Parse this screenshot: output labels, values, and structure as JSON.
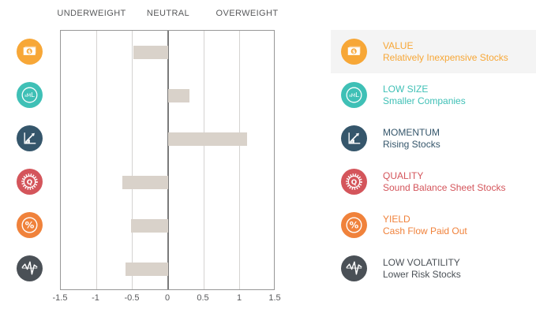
{
  "header": {
    "zone_labels": [
      "UNDERWEIGHT",
      "NEUTRAL",
      "OVERWEIGHT"
    ]
  },
  "x_axis": {
    "tick_labels": [
      "-1.5",
      "-1",
      "-0.5",
      "0",
      "0.5",
      "1",
      "1.5"
    ]
  },
  "chart_data": {
    "type": "bar",
    "orientation": "horizontal",
    "title": "",
    "categories": [
      "VALUE",
      "LOW SIZE",
      "MOMENTUM",
      "QUALITY",
      "YIELD",
      "LOW VOLATILITY"
    ],
    "values": [
      -0.49,
      0.3,
      1.1,
      -0.64,
      -0.52,
      -0.6
    ],
    "xlim": [
      -1.5,
      1.5
    ],
    "x_ticks": [
      -1.5,
      -1,
      -0.5,
      0,
      0.5,
      1,
      1.5
    ],
    "zones": [
      "UNDERWEIGHT",
      "NEUTRAL",
      "OVERWEIGHT"
    ],
    "bar_color": "#D9D2CA",
    "grid": true,
    "legend_position": "right"
  },
  "factors": [
    {
      "name": "VALUE",
      "description": "Relatively Inexpensive Stocks",
      "color": "#F7A737",
      "icon": "value-icon",
      "value": -0.49,
      "highlighted": true
    },
    {
      "name": "LOW SIZE",
      "description": "Smaller Companies",
      "color": "#3FC0B6",
      "icon": "low-size-icon",
      "value": 0.3,
      "highlighted": false
    },
    {
      "name": "MOMENTUM",
      "description": "Rising Stocks",
      "color": "#35566B",
      "icon": "momentum-icon",
      "value": 1.1,
      "highlighted": false
    },
    {
      "name": "QUALITY",
      "description": "Sound Balance Sheet Stocks",
      "color": "#D4555B",
      "icon": "quality-icon",
      "value": -0.64,
      "highlighted": false
    },
    {
      "name": "YIELD",
      "description": "Cash Flow Paid Out",
      "color": "#F0823B",
      "icon": "yield-icon",
      "value": -0.52,
      "highlighted": false
    },
    {
      "name": "LOW VOLATILITY",
      "description": "Lower Risk Stocks",
      "color": "#4A5056",
      "icon": "low-volatility-icon",
      "value": -0.6,
      "highlighted": false
    }
  ],
  "ui": {
    "highlight_color": "#F4F4F4",
    "text_color": "#58595B",
    "grid_color": "#D5D3D1",
    "axis_border_color": "#979797",
    "zero_line_color": "#7A7A7A"
  }
}
